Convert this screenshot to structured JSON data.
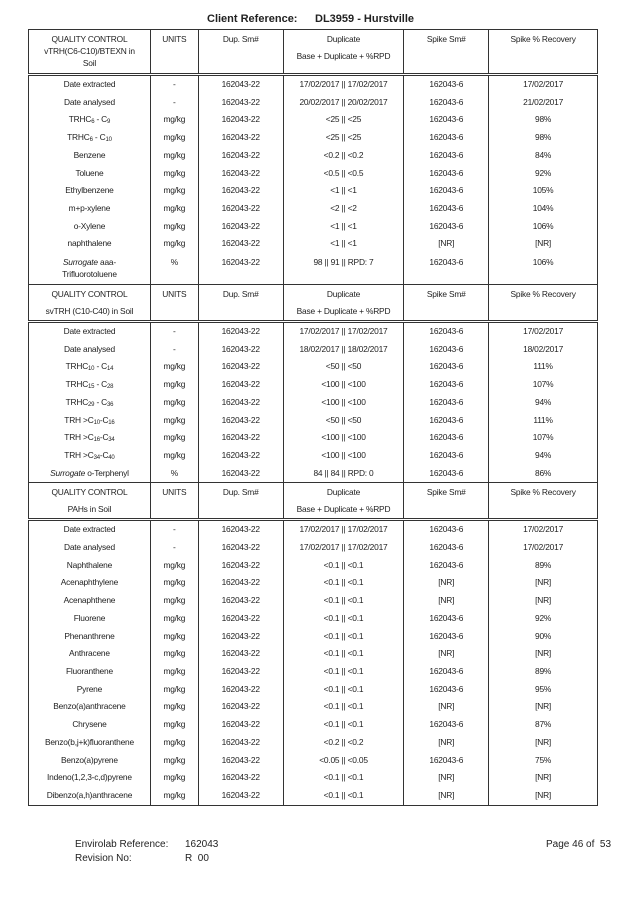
{
  "header": {
    "client_ref_label": "Client Reference:",
    "client_ref_value": "DL3959 - Hurstville"
  },
  "columns": [
    "UNITS",
    "Dup. Sm#",
    "Duplicate",
    "Base + Duplicate + %RPD",
    "Spike Sm#",
    "Spike % Recovery"
  ],
  "sections": [
    {
      "title_lines": [
        "QUALITY CONTROL",
        "vTRH(C6-C10)/BTEXN in",
        "Soil"
      ],
      "rows": [
        {
          "label": [
            {
              "t": "Date extracted"
            }
          ],
          "units": "-",
          "dup": "162043-22",
          "duplicate": "17/02/2017 || 17/02/2017",
          "spike": "162043-6",
          "rec": "17/02/2017"
        },
        {
          "label": [
            {
              "t": "Date analysed"
            }
          ],
          "units": "-",
          "dup": "162043-22",
          "duplicate": "20/02/2017 || 20/02/2017",
          "spike": "162043-6",
          "rec": "21/02/2017"
        },
        {
          "label": [
            {
              "t": "TRHC"
            },
            {
              "t": "6",
              "sub": true
            },
            {
              "t": " - C"
            },
            {
              "t": "9",
              "sub": true
            }
          ],
          "units": "mg/kg",
          "dup": "162043-22",
          "duplicate": "<25 || <25",
          "spike": "162043-6",
          "rec": "98%"
        },
        {
          "label": [
            {
              "t": "TRHC"
            },
            {
              "t": "6",
              "sub": true
            },
            {
              "t": " - C"
            },
            {
              "t": "10",
              "sub": true
            }
          ],
          "units": "mg/kg",
          "dup": "162043-22",
          "duplicate": "<25 || <25",
          "spike": "162043-6",
          "rec": "98%"
        },
        {
          "label": [
            {
              "t": "Benzene"
            }
          ],
          "units": "mg/kg",
          "dup": "162043-22",
          "duplicate": "<0.2 || <0.2",
          "spike": "162043-6",
          "rec": "84%"
        },
        {
          "label": [
            {
              "t": "Toluene"
            }
          ],
          "units": "mg/kg",
          "dup": "162043-22",
          "duplicate": "<0.5 || <0.5",
          "spike": "162043-6",
          "rec": "92%"
        },
        {
          "label": [
            {
              "t": "Ethylbenzene"
            }
          ],
          "units": "mg/kg",
          "dup": "162043-22",
          "duplicate": "<1 || <1",
          "spike": "162043-6",
          "rec": "105%"
        },
        {
          "label": [
            {
              "t": "m+p-xylene"
            }
          ],
          "units": "mg/kg",
          "dup": "162043-22",
          "duplicate": "<2 || <2",
          "spike": "162043-6",
          "rec": "104%"
        },
        {
          "label": [
            {
              "t": "o-Xylene"
            }
          ],
          "units": "mg/kg",
          "dup": "162043-22",
          "duplicate": "<1 || <1",
          "spike": "162043-6",
          "rec": "106%"
        },
        {
          "label": [
            {
              "t": "naphthalene"
            }
          ],
          "units": "mg/kg",
          "dup": "162043-22",
          "duplicate": "<1 || <1",
          "spike": "[NR]",
          "rec": "[NR]"
        },
        {
          "label": [
            {
              "t": "Surrogate",
              "i": true
            },
            {
              "t": " aaa-"
            },
            {
              "t": "Trifluorotoluene",
              "br": true
            }
          ],
          "units": "%",
          "dup": "162043-22",
          "duplicate": "98 || 91 || RPD: 7",
          "spike": "162043-6",
          "rec": "106%"
        }
      ]
    },
    {
      "title_lines": [
        "QUALITY CONTROL",
        "svTRH (C10-C40) in Soil"
      ],
      "rows": [
        {
          "label": [
            {
              "t": "Date extracted"
            }
          ],
          "units": "-",
          "dup": "162043-22",
          "duplicate": "17/02/2017 || 17/02/2017",
          "spike": "162043-6",
          "rec": "17/02/2017"
        },
        {
          "label": [
            {
              "t": "Date analysed"
            }
          ],
          "units": "-",
          "dup": "162043-22",
          "duplicate": "18/02/2017 || 18/02/2017",
          "spike": "162043-6",
          "rec": "18/02/2017"
        },
        {
          "label": [
            {
              "t": "TRHC"
            },
            {
              "t": "10",
              "sub": true
            },
            {
              "t": " - C"
            },
            {
              "t": "14",
              "sub": true
            }
          ],
          "units": "mg/kg",
          "dup": "162043-22",
          "duplicate": "<50 || <50",
          "spike": "162043-6",
          "rec": "111%"
        },
        {
          "label": [
            {
              "t": "TRHC"
            },
            {
              "t": "15",
              "sub": true
            },
            {
              "t": " - C"
            },
            {
              "t": "28",
              "sub": true
            }
          ],
          "units": "mg/kg",
          "dup": "162043-22",
          "duplicate": "<100 || <100",
          "spike": "162043-6",
          "rec": "107%"
        },
        {
          "label": [
            {
              "t": "TRHC"
            },
            {
              "t": "29",
              "sub": true
            },
            {
              "t": " - C"
            },
            {
              "t": "36",
              "sub": true
            }
          ],
          "units": "mg/kg",
          "dup": "162043-22",
          "duplicate": "<100 || <100",
          "spike": "162043-6",
          "rec": "94%"
        },
        {
          "label": [
            {
              "t": "TRH >C"
            },
            {
              "t": "10",
              "sub": true
            },
            {
              "t": "-C"
            },
            {
              "t": "16",
              "sub": true
            }
          ],
          "units": "mg/kg",
          "dup": "162043-22",
          "duplicate": "<50 || <50",
          "spike": "162043-6",
          "rec": "111%"
        },
        {
          "label": [
            {
              "t": "TRH >C"
            },
            {
              "t": "16",
              "sub": true
            },
            {
              "t": "-C"
            },
            {
              "t": "34",
              "sub": true
            }
          ],
          "units": "mg/kg",
          "dup": "162043-22",
          "duplicate": "<100 || <100",
          "spike": "162043-6",
          "rec": "107%"
        },
        {
          "label": [
            {
              "t": "TRH >C"
            },
            {
              "t": "34",
              "sub": true
            },
            {
              "t": "-C"
            },
            {
              "t": "40",
              "sub": true
            }
          ],
          "units": "mg/kg",
          "dup": "162043-22",
          "duplicate": "<100 || <100",
          "spike": "162043-6",
          "rec": "94%"
        },
        {
          "label": [
            {
              "t": "Surrogate",
              "i": true
            },
            {
              "t": " o-Terphenyl"
            }
          ],
          "units": "%",
          "dup": "162043-22",
          "duplicate": "84 || 84 || RPD: 0",
          "spike": "162043-6",
          "rec": "86%"
        }
      ]
    },
    {
      "title_lines": [
        "QUALITY CONTROL",
        "PAHs in Soil"
      ],
      "rows": [
        {
          "label": [
            {
              "t": "Date extracted"
            }
          ],
          "units": "-",
          "dup": "162043-22",
          "duplicate": "17/02/2017 || 17/02/2017",
          "spike": "162043-6",
          "rec": "17/02/2017"
        },
        {
          "label": [
            {
              "t": "Date analysed"
            }
          ],
          "units": "-",
          "dup": "162043-22",
          "duplicate": "17/02/2017 || 17/02/2017",
          "spike": "162043-6",
          "rec": "17/02/2017"
        },
        {
          "label": [
            {
              "t": "Naphthalene"
            }
          ],
          "units": "mg/kg",
          "dup": "162043-22",
          "duplicate": "<0.1 || <0.1",
          "spike": "162043-6",
          "rec": "89%"
        },
        {
          "label": [
            {
              "t": "Acenaphthylene"
            }
          ],
          "units": "mg/kg",
          "dup": "162043-22",
          "duplicate": "<0.1 || <0.1",
          "spike": "[NR]",
          "rec": "[NR]"
        },
        {
          "label": [
            {
              "t": "Acenaphthene"
            }
          ],
          "units": "mg/kg",
          "dup": "162043-22",
          "duplicate": "<0.1 || <0.1",
          "spike": "[NR]",
          "rec": "[NR]"
        },
        {
          "label": [
            {
              "t": "Fluorene"
            }
          ],
          "units": "mg/kg",
          "dup": "162043-22",
          "duplicate": "<0.1 || <0.1",
          "spike": "162043-6",
          "rec": "92%"
        },
        {
          "label": [
            {
              "t": "Phenanthrene"
            }
          ],
          "units": "mg/kg",
          "dup": "162043-22",
          "duplicate": "<0.1 || <0.1",
          "spike": "162043-6",
          "rec": "90%"
        },
        {
          "label": [
            {
              "t": "Anthracene"
            }
          ],
          "units": "mg/kg",
          "dup": "162043-22",
          "duplicate": "<0.1 || <0.1",
          "spike": "[NR]",
          "rec": "[NR]"
        },
        {
          "label": [
            {
              "t": "Fluoranthene"
            }
          ],
          "units": "mg/kg",
          "dup": "162043-22",
          "duplicate": "<0.1 || <0.1",
          "spike": "162043-6",
          "rec": "89%"
        },
        {
          "label": [
            {
              "t": "Pyrene"
            }
          ],
          "units": "mg/kg",
          "dup": "162043-22",
          "duplicate": "<0.1 || <0.1",
          "spike": "162043-6",
          "rec": "95%"
        },
        {
          "label": [
            {
              "t": "Benzo(a)anthracene"
            }
          ],
          "units": "mg/kg",
          "dup": "162043-22",
          "duplicate": "<0.1 || <0.1",
          "spike": "[NR]",
          "rec": "[NR]"
        },
        {
          "label": [
            {
              "t": "Chrysene"
            }
          ],
          "units": "mg/kg",
          "dup": "162043-22",
          "duplicate": "<0.1 || <0.1",
          "spike": "162043-6",
          "rec": "87%"
        },
        {
          "label": [
            {
              "t": "Benzo(b,j+k)fluoranthene"
            }
          ],
          "units": "mg/kg",
          "dup": "162043-22",
          "duplicate": "<0.2 || <0.2",
          "spike": "[NR]",
          "rec": "[NR]"
        },
        {
          "label": [
            {
              "t": "Benzo(a)pyrene"
            }
          ],
          "units": "mg/kg",
          "dup": "162043-22",
          "duplicate": "<0.05 || <0.05",
          "spike": "162043-6",
          "rec": "75%"
        },
        {
          "label": [
            {
              "t": "Indeno(1,2,3-c,d)pyrene"
            }
          ],
          "units": "mg/kg",
          "dup": "162043-22",
          "duplicate": "<0.1 || <0.1",
          "spike": "[NR]",
          "rec": "[NR]"
        },
        {
          "label": [
            {
              "t": "Dibenzo(a,h)anthracene"
            }
          ],
          "units": "mg/kg",
          "dup": "162043-22",
          "duplicate": "<0.1 || <0.1",
          "spike": "[NR]",
          "rec": "[NR]"
        }
      ]
    }
  ],
  "footer": {
    "envirolab_ref_label": "Envirolab Reference:",
    "envirolab_ref_value": "162043",
    "revision_label": "Revision No:",
    "revision_value": "R  00",
    "page": "Page 46 of  53"
  }
}
